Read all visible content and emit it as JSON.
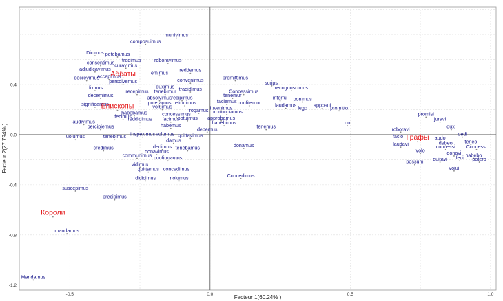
{
  "chart_data": {
    "type": "scatter",
    "xlabel": "Facteur 1(60.24% )",
    "ylabel": "Facteur 2(27.794% )",
    "xlim": [
      -0.68,
      1.02
    ],
    "ylim": [
      -1.24,
      1.02
    ],
    "xticks": [
      -0.5,
      0.0,
      0.5,
      1.0
    ],
    "yticks": [
      -1.2,
      -0.8,
      -0.4,
      0.0,
      0.4
    ],
    "grid": true,
    "accent_color": "#e41a1c",
    "word_color": "#1a1a8c",
    "groups": [
      {
        "label": "Аббаты",
        "x": -0.31,
        "y": 0.47
      },
      {
        "label": "Епископы",
        "x": -0.33,
        "y": 0.21
      },
      {
        "label": "Графы",
        "x": 0.74,
        "y": -0.04
      },
      {
        "label": "Короли",
        "x": -0.56,
        "y": -0.64
      }
    ],
    "points": [
      {
        "label": "composuimus",
        "x": -0.23,
        "y": 0.72
      },
      {
        "label": "munivimus",
        "x": -0.12,
        "y": 0.77
      },
      {
        "label": "Dicimus",
        "x": -0.41,
        "y": 0.63
      },
      {
        "label": "petebamus",
        "x": -0.33,
        "y": 0.62
      },
      {
        "label": "consentimus",
        "x": -0.39,
        "y": 0.55
      },
      {
        "label": "tradimus",
        "x": -0.28,
        "y": 0.57
      },
      {
        "label": "roboravimus",
        "x": -0.15,
        "y": 0.57
      },
      {
        "label": "adjudicavimus",
        "x": -0.41,
        "y": 0.5
      },
      {
        "label": "curavimus",
        "x": -0.3,
        "y": 0.53
      },
      {
        "label": "reddemus",
        "x": -0.07,
        "y": 0.49
      },
      {
        "label": "emimus",
        "x": -0.18,
        "y": 0.47
      },
      {
        "label": "decrevimus",
        "x": -0.44,
        "y": 0.43
      },
      {
        "label": "accepimus",
        "x": -0.36,
        "y": 0.44
      },
      {
        "label": "persolvemus",
        "x": -0.31,
        "y": 0.4
      },
      {
        "label": "convenimus",
        "x": -0.07,
        "y": 0.41
      },
      {
        "label": "promittimus",
        "x": 0.09,
        "y": 0.43
      },
      {
        "label": "scripsi",
        "x": 0.22,
        "y": 0.39
      },
      {
        "label": "recognoscimus",
        "x": 0.29,
        "y": 0.35
      },
      {
        "label": "dixinus",
        "x": -0.41,
        "y": 0.35
      },
      {
        "label": "duximus",
        "x": -0.16,
        "y": 0.36
      },
      {
        "label": "tradidimus",
        "x": -0.07,
        "y": 0.34
      },
      {
        "label": "Concessimus",
        "x": 0.12,
        "y": 0.32
      },
      {
        "label": "recepimus",
        "x": -0.26,
        "y": 0.32
      },
      {
        "label": "tenebimur",
        "x": -0.16,
        "y": 0.32
      },
      {
        "label": "decemimus",
        "x": -0.39,
        "y": 0.29
      },
      {
        "label": "absolvimus",
        "x": -0.18,
        "y": 0.27
      },
      {
        "label": "recipimus",
        "x": -0.1,
        "y": 0.27
      },
      {
        "label": "tenemur",
        "x": 0.08,
        "y": 0.29
      },
      {
        "label": "interfui",
        "x": 0.25,
        "y": 0.27
      },
      {
        "label": "ponimus",
        "x": 0.33,
        "y": 0.26
      },
      {
        "label": "poteramus",
        "x": -0.18,
        "y": 0.23
      },
      {
        "label": "retinuimus",
        "x": -0.09,
        "y": 0.23
      },
      {
        "label": "faciemus",
        "x": 0.06,
        "y": 0.24
      },
      {
        "label": "confitemur",
        "x": 0.14,
        "y": 0.23
      },
      {
        "label": "laudamus",
        "x": 0.27,
        "y": 0.21
      },
      {
        "label": "apposui",
        "x": 0.4,
        "y": 0.21
      },
      {
        "label": "significamus",
        "x": -0.41,
        "y": 0.22
      },
      {
        "label": "voluimus",
        "x": -0.17,
        "y": 0.2
      },
      {
        "label": "invenimus",
        "x": 0.04,
        "y": 0.19
      },
      {
        "label": "lego",
        "x": 0.33,
        "y": 0.19
      },
      {
        "label": "promitto",
        "x": 0.46,
        "y": 0.19
      },
      {
        "label": "rogamus",
        "x": -0.04,
        "y": 0.17
      },
      {
        "label": "pronunciamus",
        "x": 0.06,
        "y": 0.16
      },
      {
        "label": "habebamus",
        "x": -0.27,
        "y": 0.15
      },
      {
        "label": "concessimus",
        "x": -0.12,
        "y": 0.14
      },
      {
        "label": "fecimus",
        "x": -0.31,
        "y": 0.12
      },
      {
        "label": "reddidimus",
        "x": -0.25,
        "y": 0.1
      },
      {
        "label": "facimus",
        "x": -0.14,
        "y": 0.1
      },
      {
        "label": "potuimus",
        "x": -0.08,
        "y": 0.11
      },
      {
        "label": "approbamus",
        "x": 0.04,
        "y": 0.11
      },
      {
        "label": "audivimus",
        "x": -0.45,
        "y": 0.08
      },
      {
        "label": "habemus",
        "x": -0.14,
        "y": 0.05
      },
      {
        "label": "habebimus",
        "x": 0.05,
        "y": 0.07
      },
      {
        "label": "percipiemus",
        "x": -0.39,
        "y": 0.04
      },
      {
        "label": "debemus",
        "x": -0.01,
        "y": 0.02
      },
      {
        "label": "tenemus",
        "x": 0.2,
        "y": 0.04
      },
      {
        "label": "do",
        "x": 0.49,
        "y": 0.07
      },
      {
        "label": "promisi",
        "x": 0.77,
        "y": 0.14
      },
      {
        "label": "juravi",
        "x": 0.82,
        "y": 0.1
      },
      {
        "label": "duxi",
        "x": 0.86,
        "y": 0.04
      },
      {
        "label": "roboravi",
        "x": 0.68,
        "y": 0.02
      },
      {
        "label": "dedi",
        "x": 0.9,
        "y": -0.02
      },
      {
        "label": "inspeximus",
        "x": -0.24,
        "y": -0.02
      },
      {
        "label": "volumus",
        "x": -0.16,
        "y": -0.02
      },
      {
        "label": "quittavimus",
        "x": -0.07,
        "y": -0.03
      },
      {
        "label": "uolumus",
        "x": -0.48,
        "y": -0.04
      },
      {
        "label": "tenebimus",
        "x": -0.34,
        "y": -0.04
      },
      {
        "label": "damus",
        "x": -0.13,
        "y": -0.07
      },
      {
        "label": "facio",
        "x": 0.67,
        "y": -0.04
      },
      {
        "label": "audo",
        "x": 0.82,
        "y": -0.05
      },
      {
        "label": "teneo",
        "x": 0.93,
        "y": -0.08
      },
      {
        "label": "laudavi",
        "x": 0.68,
        "y": -0.1
      },
      {
        "label": "debeo",
        "x": 0.84,
        "y": -0.09
      },
      {
        "label": "Concessi",
        "x": 0.95,
        "y": -0.12
      },
      {
        "label": "donamus",
        "x": 0.12,
        "y": -0.11
      },
      {
        "label": "credimus",
        "x": -0.38,
        "y": -0.13
      },
      {
        "label": "dedimus",
        "x": -0.17,
        "y": -0.12
      },
      {
        "label": "tenebamus",
        "x": -0.08,
        "y": -0.13
      },
      {
        "label": "volo",
        "x": 0.75,
        "y": -0.15
      },
      {
        "label": "concessi",
        "x": 0.84,
        "y": -0.12
      },
      {
        "label": "donavimus",
        "x": -0.19,
        "y": -0.16
      },
      {
        "label": "donavi",
        "x": 0.87,
        "y": -0.17
      },
      {
        "label": "habebo",
        "x": 0.94,
        "y": -0.19
      },
      {
        "label": "communimus",
        "x": -0.26,
        "y": -0.19
      },
      {
        "label": "feci",
        "x": 0.89,
        "y": -0.21
      },
      {
        "label": "potero",
        "x": 0.96,
        "y": -0.22
      },
      {
        "label": "confirmamus",
        "x": -0.15,
        "y": -0.21
      },
      {
        "label": "quitavi",
        "x": 0.82,
        "y": -0.22
      },
      {
        "label": "possum",
        "x": 0.73,
        "y": -0.24
      },
      {
        "label": "vidimus",
        "x": -0.25,
        "y": -0.26
      },
      {
        "label": "voiui",
        "x": 0.87,
        "y": -0.29
      },
      {
        "label": "quittamus",
        "x": -0.22,
        "y": -0.3
      },
      {
        "label": "concedimus",
        "x": -0.12,
        "y": -0.3
      },
      {
        "label": "Concedimus",
        "x": 0.11,
        "y": -0.35
      },
      {
        "label": "didicimus",
        "x": -0.23,
        "y": -0.37
      },
      {
        "label": "nolumus",
        "x": -0.11,
        "y": -0.37
      },
      {
        "label": "suscepimus",
        "x": -0.48,
        "y": -0.45
      },
      {
        "label": "precipimus",
        "x": -0.34,
        "y": -0.52
      },
      {
        "label": "mandamus",
        "x": -0.51,
        "y": -0.79
      },
      {
        "label": "Mandamus",
        "x": -0.63,
        "y": -1.16
      }
    ]
  }
}
